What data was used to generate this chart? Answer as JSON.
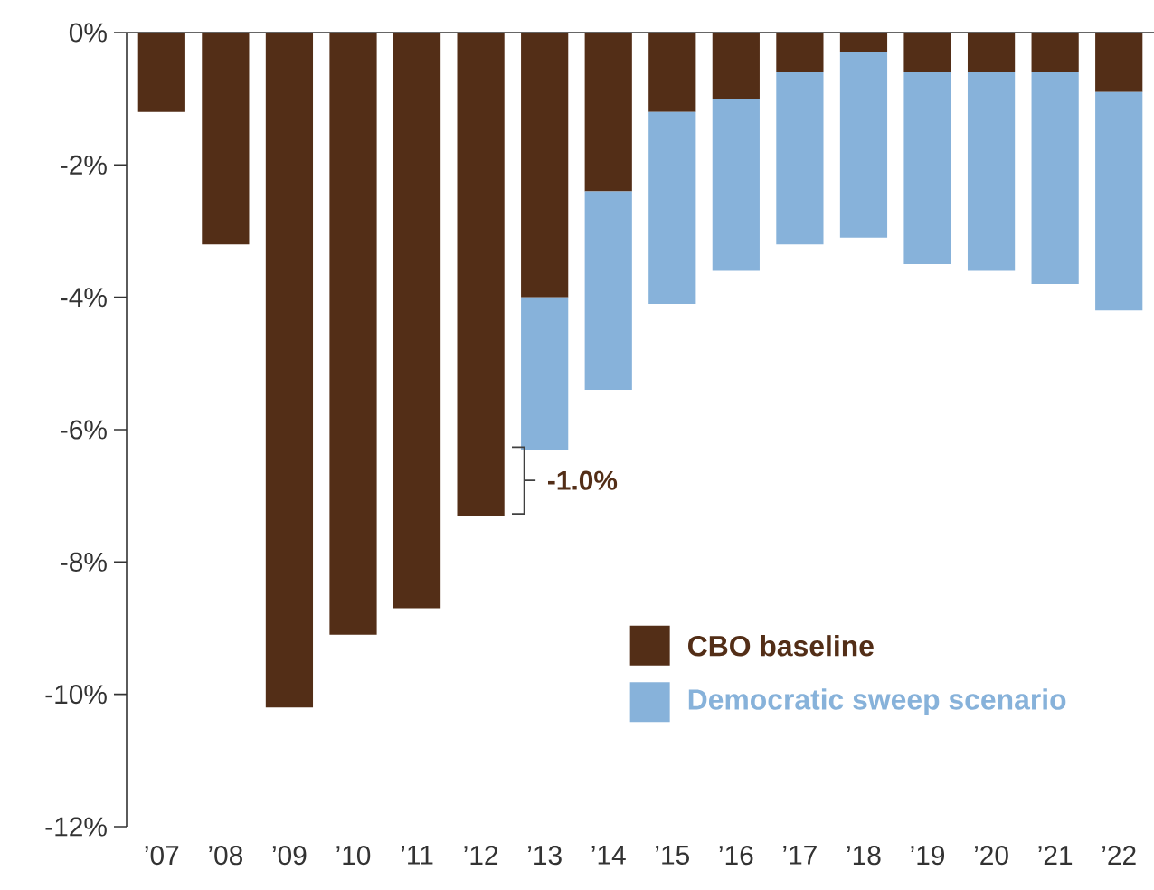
{
  "chart_data": {
    "type": "bar",
    "stacked": true,
    "categories": [
      "’07",
      "’08",
      "’09",
      "’10",
      "’11",
      "’12",
      "’13",
      "’14",
      "’15",
      "’16",
      "’17",
      "’18",
      "’19",
      "’20",
      "’21",
      "’22"
    ],
    "series": [
      {
        "name": "CBO baseline",
        "color": "#532e17",
        "values": [
          -1.2,
          -3.2,
          -10.2,
          -9.1,
          -8.7,
          -7.3,
          -4.0,
          -2.4,
          -1.2,
          -1.0,
          -0.6,
          -0.3,
          -0.6,
          -0.6,
          -0.6,
          -0.9
        ]
      },
      {
        "name": "Democratic sweep scenario",
        "color": "#87b2da",
        "values": [
          null,
          null,
          null,
          null,
          null,
          null,
          -2.3,
          -3.0,
          -2.9,
          -2.6,
          -2.6,
          -2.8,
          -2.9,
          -3.0,
          -3.2,
          -3.3
        ]
      }
    ],
    "ylim": [
      -12,
      0
    ],
    "yticks": [
      {
        "value": 0,
        "label": "0%"
      },
      {
        "value": -2,
        "label": "-2%"
      },
      {
        "value": -4,
        "label": "-4%"
      },
      {
        "value": -6,
        "label": "-6%"
      },
      {
        "value": -8,
        "label": "-8%"
      },
      {
        "value": -10,
        "label": "-10%"
      },
      {
        "value": -12,
        "label": "-12%"
      }
    ],
    "annotations": [
      "-1.0%"
    ],
    "legend": "bottom right"
  }
}
